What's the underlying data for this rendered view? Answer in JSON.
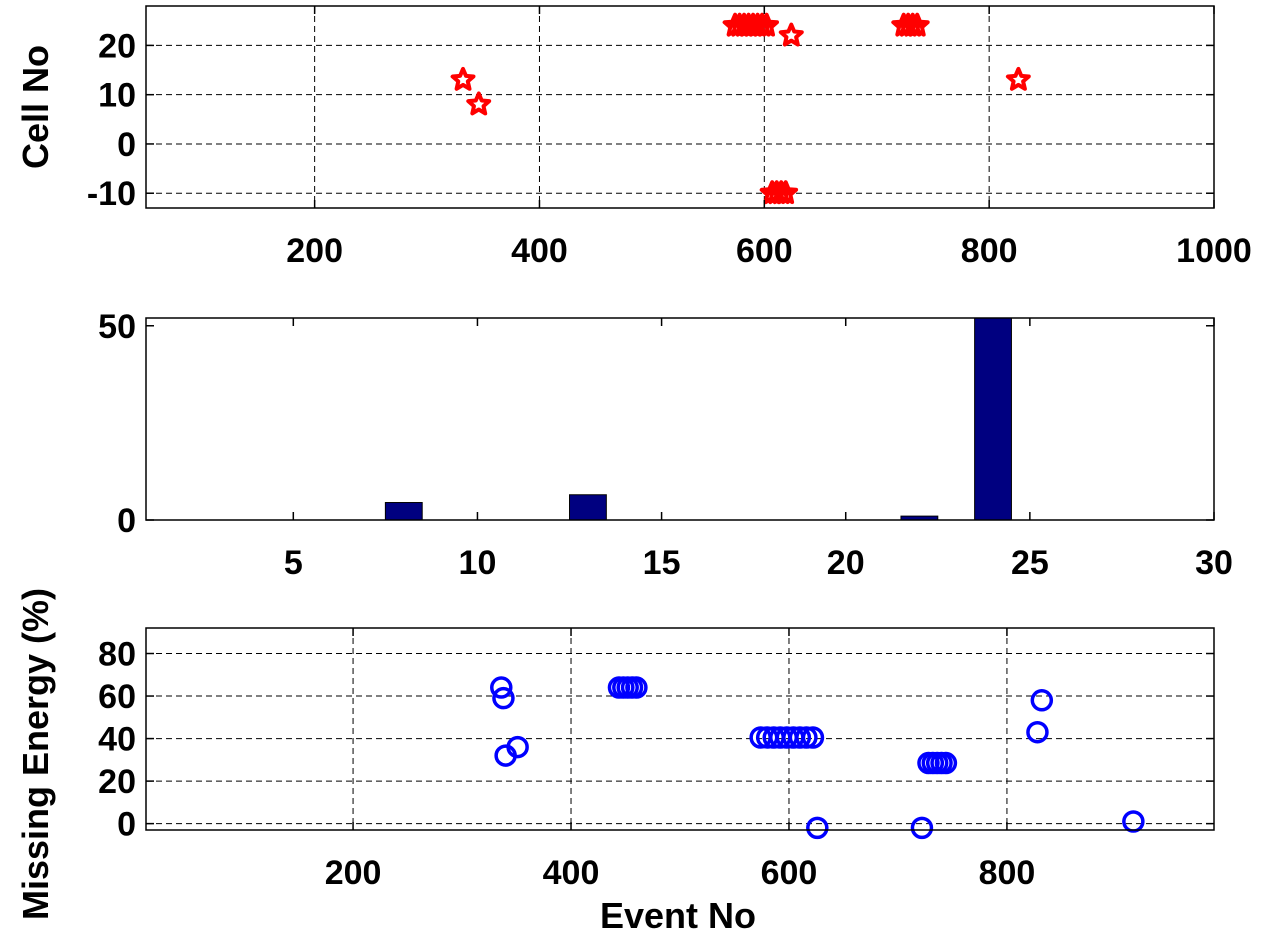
{
  "chart_data": [
    {
      "type": "scatter",
      "ylabel": "Cell No",
      "xlim": [
        50,
        1000
      ],
      "ylim": [
        -13,
        28
      ],
      "xticks": [
        200,
        400,
        600,
        800,
        1000
      ],
      "yticks": [
        -10,
        0,
        10,
        20
      ],
      "grid": true,
      "marker": "star",
      "color": "#ff0000",
      "points": [
        {
          "x": 332,
          "y": 13
        },
        {
          "x": 346,
          "y": 8
        },
        {
          "x": 574,
          "y": 24
        },
        {
          "x": 578,
          "y": 24
        },
        {
          "x": 582,
          "y": 24
        },
        {
          "x": 586,
          "y": 24
        },
        {
          "x": 590,
          "y": 24
        },
        {
          "x": 594,
          "y": 24
        },
        {
          "x": 598,
          "y": 24
        },
        {
          "x": 602,
          "y": 24
        },
        {
          "x": 607,
          "y": -10
        },
        {
          "x": 611,
          "y": -10
        },
        {
          "x": 615,
          "y": -10
        },
        {
          "x": 619,
          "y": -10
        },
        {
          "x": 624,
          "y": 22
        },
        {
          "x": 724,
          "y": 24
        },
        {
          "x": 728,
          "y": 24
        },
        {
          "x": 732,
          "y": 24
        },
        {
          "x": 736,
          "y": 24
        },
        {
          "x": 826,
          "y": 13
        }
      ]
    },
    {
      "type": "bar",
      "xlim": [
        1,
        30
      ],
      "ylim": [
        0,
        52
      ],
      "xticks": [
        5,
        10,
        15,
        20,
        25,
        30
      ],
      "yticks": [
        0,
        50
      ],
      "grid": false,
      "color": "#000080",
      "bar_width": 1,
      "bars": [
        {
          "x": 8,
          "y": 4.5
        },
        {
          "x": 13,
          "y": 6.5
        },
        {
          "x": 22,
          "y": 1
        },
        {
          "x": 24,
          "y": 52
        }
      ]
    },
    {
      "type": "scatter",
      "xlabel": "Event No",
      "ylabel": "Missing Energy (%)",
      "xlim": [
        10,
        990
      ],
      "ylim": [
        -3,
        92
      ],
      "xticks": [
        200,
        400,
        600,
        800
      ],
      "yticks": [
        0,
        20,
        40,
        60,
        80
      ],
      "grid": true,
      "marker": "circle",
      "color": "#0000ff",
      "points": [
        {
          "x": 336,
          "y": 64
        },
        {
          "x": 338,
          "y": 59
        },
        {
          "x": 340,
          "y": 32
        },
        {
          "x": 351,
          "y": 36
        },
        {
          "x": 444,
          "y": 64
        },
        {
          "x": 448,
          "y": 64
        },
        {
          "x": 452,
          "y": 64
        },
        {
          "x": 456,
          "y": 64
        },
        {
          "x": 460,
          "y": 64
        },
        {
          "x": 574,
          "y": 40.5
        },
        {
          "x": 580,
          "y": 40.5
        },
        {
          "x": 586,
          "y": 40.5
        },
        {
          "x": 592,
          "y": 40.5
        },
        {
          "x": 598,
          "y": 40.5
        },
        {
          "x": 604,
          "y": 40.5
        },
        {
          "x": 610,
          "y": 40.5
        },
        {
          "x": 616,
          "y": 40.5
        },
        {
          "x": 622,
          "y": 40.5
        },
        {
          "x": 626,
          "y": -2
        },
        {
          "x": 722,
          "y": -2
        },
        {
          "x": 728,
          "y": 28.5
        },
        {
          "x": 732,
          "y": 28.5
        },
        {
          "x": 736,
          "y": 28.5
        },
        {
          "x": 740,
          "y": 28.5
        },
        {
          "x": 744,
          "y": 28.5
        },
        {
          "x": 828,
          "y": 43
        },
        {
          "x": 832,
          "y": 58
        },
        {
          "x": 916,
          "y": 1
        }
      ]
    }
  ]
}
